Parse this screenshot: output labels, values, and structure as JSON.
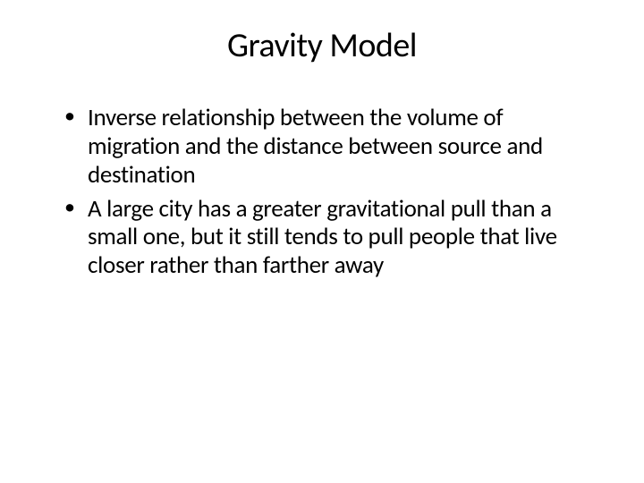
{
  "slide": {
    "title": "Gravity Model",
    "bullets": [
      "Inverse relationship between the volume of migration and the distance between source and destination",
      "A large city has a greater gravitational pull than a small one, but it still tends to pull people that live closer rather than farther away"
    ]
  },
  "style": {
    "background_color": "#ffffff",
    "text_color": "#000000",
    "title_fontsize": 38,
    "body_fontsize": 27,
    "font_family": "Calibri"
  }
}
